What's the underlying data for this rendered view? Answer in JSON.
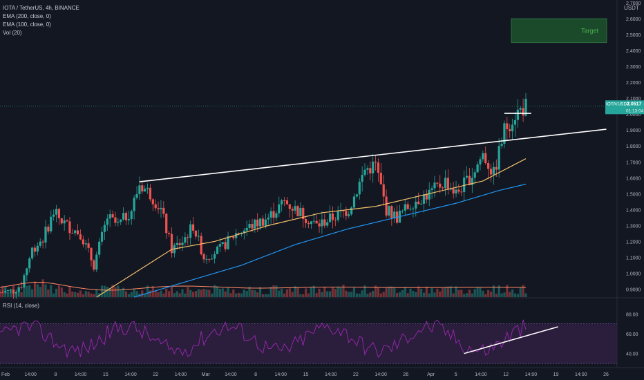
{
  "header": {
    "symbol_line": "IOTA / TetherUS, 4h, BINANCE",
    "indicators": [
      "EMA (200, close, 0)",
      "EMA (100, close, 0)",
      "Vol (20)"
    ],
    "rsi_label": "RSI (14, close)",
    "currency": "USDT"
  },
  "price_tag": {
    "symbol": "IOTA/USDT",
    "price": "2.0517",
    "countdown": "01:13:04"
  },
  "target_box": {
    "label": "Target",
    "price_top": 2.6,
    "price_bottom": 2.45
  },
  "colors": {
    "background": "#131722",
    "up": "#26a69a",
    "down": "#ef5350",
    "ema200": "#2196f3",
    "ema100": "#f5c26b",
    "vol_ma": "#ff8a65",
    "rsi_line": "#9c27b0",
    "rsi_band": "#2b1e3d",
    "target_fill": "#1b4a2b",
    "target_text": "#4caf50",
    "trendline": "#ffffff"
  },
  "chart_data": [
    {
      "type": "candlestick",
      "title": "IOTA / TetherUS, 4h, BINANCE",
      "ylabel": "USDT",
      "y_ticks": [
        0.9,
        1.0,
        1.1,
        1.2,
        1.3,
        1.4,
        1.5,
        1.6,
        1.7,
        1.8,
        1.9,
        2.0,
        2.1,
        2.2,
        2.3,
        2.4,
        2.5,
        2.6,
        2.7
      ],
      "ylim": [
        0.85,
        2.7
      ],
      "x_ticks": [
        "Feb",
        "14:00",
        "8",
        "14:00",
        "15",
        "14:00",
        "22",
        "14:00",
        "Mar",
        "14:00",
        "8",
        "14:00",
        "15",
        "14:00",
        "22",
        "14:00",
        "26",
        "Apr",
        "5",
        "14:00",
        "12",
        "14:00",
        "19",
        "14:00",
        "26"
      ],
      "price_path": [
        {
          "t": 0,
          "p": 0.88
        },
        {
          "t": 5,
          "p": 0.89
        },
        {
          "t": 8,
          "p": 0.93
        },
        {
          "t": 12,
          "p": 1.15
        },
        {
          "t": 16,
          "p": 1.22
        },
        {
          "t": 20,
          "p": 1.38
        },
        {
          "t": 25,
          "p": 1.3
        },
        {
          "t": 30,
          "p": 1.25
        },
        {
          "t": 35,
          "p": 1.05
        },
        {
          "t": 40,
          "p": 1.35
        },
        {
          "t": 44,
          "p": 1.3
        },
        {
          "t": 49,
          "p": 1.4
        },
        {
          "t": 52,
          "p": 1.56
        },
        {
          "t": 56,
          "p": 1.5
        },
        {
          "t": 60,
          "p": 1.4
        },
        {
          "t": 64,
          "p": 1.15
        },
        {
          "t": 68,
          "p": 1.2
        },
        {
          "t": 72,
          "p": 1.3
        },
        {
          "t": 76,
          "p": 1.1
        },
        {
          "t": 82,
          "p": 1.15
        },
        {
          "t": 88,
          "p": 1.25
        },
        {
          "t": 94,
          "p": 1.3
        },
        {
          "t": 100,
          "p": 1.35
        },
        {
          "t": 106,
          "p": 1.45
        },
        {
          "t": 112,
          "p": 1.38
        },
        {
          "t": 118,
          "p": 1.3
        },
        {
          "t": 124,
          "p": 1.35
        },
        {
          "t": 130,
          "p": 1.4
        },
        {
          "t": 136,
          "p": 1.65
        },
        {
          "t": 140,
          "p": 1.68
        },
        {
          "t": 144,
          "p": 1.4
        },
        {
          "t": 148,
          "p": 1.35
        },
        {
          "t": 154,
          "p": 1.45
        },
        {
          "t": 160,
          "p": 1.5
        },
        {
          "t": 166,
          "p": 1.58
        },
        {
          "t": 170,
          "p": 1.5
        },
        {
          "t": 176,
          "p": 1.62
        },
        {
          "t": 180,
          "p": 1.75
        },
        {
          "t": 184,
          "p": 1.62
        },
        {
          "t": 188,
          "p": 1.9
        },
        {
          "t": 192,
          "p": 2.0
        },
        {
          "t": 196,
          "p": 2.05
        }
      ],
      "ema100": [
        [
          36,
          0.85
        ],
        [
          50,
          1.0
        ],
        [
          64,
          1.15
        ],
        [
          80,
          1.2
        ],
        [
          100,
          1.3
        ],
        [
          120,
          1.38
        ],
        [
          140,
          1.42
        ],
        [
          160,
          1.5
        ],
        [
          180,
          1.58
        ],
        [
          196,
          1.72
        ]
      ],
      "ema200": [
        [
          50,
          0.85
        ],
        [
          70,
          0.95
        ],
        [
          90,
          1.05
        ],
        [
          110,
          1.18
        ],
        [
          130,
          1.28
        ],
        [
          150,
          1.36
        ],
        [
          170,
          1.44
        ],
        [
          186,
          1.52
        ],
        [
          196,
          1.56
        ]
      ],
      "trendlines": [
        {
          "from": [
            52,
            1.575
          ],
          "to": [
            226,
            1.905
          ]
        },
        {
          "from": [
            188,
            2.005
          ],
          "to": [
            198,
            2.005
          ]
        }
      ]
    },
    {
      "type": "line",
      "title": "RSI (14, close)",
      "y_ticks": [
        40,
        60,
        80
      ],
      "ylim": [
        30,
        90
      ],
      "bands": [
        30,
        70
      ],
      "trendline": {
        "from": [
          173,
          40
        ],
        "to": [
          208,
          67
        ]
      }
    }
  ]
}
